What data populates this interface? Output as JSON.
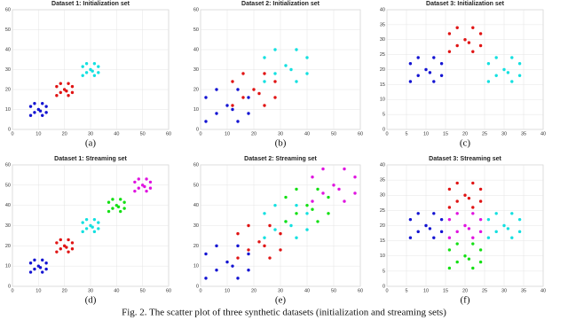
{
  "chart_data": [
    {
      "type": "scatter",
      "title": "Dataset 1: Initialization set",
      "label": "(a)",
      "xlim": [
        0,
        60
      ],
      "ylim": [
        0,
        60
      ],
      "xticks": [
        0,
        10,
        20,
        30,
        40,
        50,
        60
      ],
      "yticks": [
        0,
        10,
        20,
        30,
        40,
        50,
        60
      ],
      "grid": true,
      "series": [
        {
          "color": "#1414d2",
          "x": [
            7,
            11.5,
            10,
            13,
            8.5,
            11.5,
            7,
            13,
            8.5,
            10.75
          ],
          "y": [
            11.5,
            7,
            10,
            11.5,
            8.5,
            13,
            7,
            8.5,
            13,
            9.25
          ]
        },
        {
          "color": "#e01414",
          "x": [
            17,
            21.5,
            20,
            23,
            18.5,
            21.5,
            17,
            23,
            18.5,
            20.75
          ],
          "y": [
            21.5,
            17,
            20,
            21.5,
            18.5,
            23,
            17,
            18.5,
            23,
            19.25
          ]
        },
        {
          "color": "#14e0e0",
          "x": [
            27,
            31.5,
            30,
            33,
            28.5,
            31.5,
            27,
            33,
            28.5,
            30.75
          ],
          "y": [
            31.5,
            27,
            30,
            31.5,
            28.5,
            33,
            27,
            28.5,
            33,
            29.25
          ]
        }
      ]
    },
    {
      "type": "scatter",
      "title": "Dataset 2: Initialization set",
      "label": "(b)",
      "xlim": [
        0,
        60
      ],
      "ylim": [
        0,
        60
      ],
      "xticks": [
        0,
        10,
        20,
        30,
        40,
        50,
        60
      ],
      "yticks": [
        0,
        10,
        20,
        30,
        40,
        50,
        60
      ],
      "grid": true,
      "series": [
        {
          "color": "#1414d2",
          "x": [
            2,
            14,
            10,
            18,
            6,
            14,
            2,
            18,
            6,
            12
          ],
          "y": [
            16,
            4,
            12,
            16,
            8,
            20,
            4,
            8,
            20,
            10
          ]
        },
        {
          "color": "#e01414",
          "x": [
            12,
            24,
            20,
            28,
            16,
            24,
            12,
            28,
            16,
            22
          ],
          "y": [
            24,
            12,
            20,
            24,
            16,
            28,
            12,
            16,
            28,
            18
          ]
        },
        {
          "color": "#14e0e0",
          "x": [
            24,
            36,
            32,
            40,
            28,
            36,
            24,
            40,
            28,
            34
          ],
          "y": [
            36,
            24,
            32,
            36,
            28,
            40,
            24,
            28,
            40,
            30
          ]
        }
      ]
    },
    {
      "type": "scatter",
      "title": "Dataset 3: Initialization set",
      "label": "(c)",
      "xlim": [
        0,
        40
      ],
      "ylim": [
        0,
        40
      ],
      "xticks": [
        0,
        5,
        10,
        15,
        20,
        25,
        30,
        35,
        40
      ],
      "yticks": [
        0,
        5,
        10,
        15,
        20,
        25,
        30,
        35,
        40
      ],
      "grid": true,
      "series": [
        {
          "color": "#1414d2",
          "x": [
            6,
            12,
            10,
            14,
            8,
            12,
            6,
            14,
            8,
            11
          ],
          "y": [
            22,
            16,
            20,
            22,
            18,
            24,
            16,
            18,
            24,
            19
          ]
        },
        {
          "color": "#e01414",
          "x": [
            16,
            22,
            20,
            24,
            18,
            22,
            16,
            24,
            18,
            21
          ],
          "y": [
            32,
            26,
            30,
            32,
            28,
            34,
            26,
            28,
            34,
            29
          ]
        },
        {
          "color": "#14e0e0",
          "x": [
            26,
            32,
            30,
            34,
            28,
            32,
            26,
            34,
            28,
            31
          ],
          "y": [
            22,
            16,
            20,
            22,
            18,
            24,
            16,
            18,
            24,
            19
          ]
        }
      ]
    },
    {
      "type": "scatter",
      "title": "Dataset 1: Streaming set",
      "label": "(d)",
      "xlim": [
        0,
        60
      ],
      "ylim": [
        0,
        60
      ],
      "xticks": [
        0,
        10,
        20,
        30,
        40,
        50,
        60
      ],
      "yticks": [
        0,
        10,
        20,
        30,
        40,
        50,
        60
      ],
      "grid": true,
      "series": [
        {
          "color": "#1414d2",
          "x": [
            7,
            11.5,
            10,
            13,
            8.5,
            11.5,
            7,
            13,
            8.5,
            10.75
          ],
          "y": [
            11.5,
            7,
            10,
            11.5,
            8.5,
            13,
            7,
            8.5,
            13,
            9.25
          ]
        },
        {
          "color": "#e01414",
          "x": [
            17,
            21.5,
            20,
            23,
            18.5,
            21.5,
            17,
            23,
            18.5,
            20.75
          ],
          "y": [
            21.5,
            17,
            20,
            21.5,
            18.5,
            23,
            17,
            18.5,
            23,
            19.25
          ]
        },
        {
          "color": "#14e0e0",
          "x": [
            27,
            31.5,
            30,
            33,
            28.5,
            31.5,
            27,
            33,
            28.5,
            30.75
          ],
          "y": [
            31.5,
            27,
            30,
            31.5,
            28.5,
            33,
            27,
            28.5,
            33,
            29.25
          ]
        },
        {
          "color": "#14e014",
          "x": [
            37,
            41.5,
            40,
            43,
            38.5,
            41.5,
            37,
            43,
            38.5,
            40.75
          ],
          "y": [
            41.5,
            37,
            40,
            41.5,
            38.5,
            43,
            37,
            38.5,
            43,
            39.25
          ]
        },
        {
          "color": "#e014e0",
          "x": [
            47,
            51.5,
            50,
            53,
            48.5,
            51.5,
            47,
            53,
            48.5,
            50.75
          ],
          "y": [
            51.5,
            47,
            50,
            51.5,
            48.5,
            53,
            47,
            48.5,
            53,
            49.25
          ]
        }
      ]
    },
    {
      "type": "scatter",
      "title": "Dataset 2: Streaming set",
      "label": "(e)",
      "xlim": [
        0,
        60
      ],
      "ylim": [
        0,
        60
      ],
      "xticks": [
        0,
        10,
        20,
        30,
        40,
        50,
        60
      ],
      "yticks": [
        0,
        10,
        20,
        30,
        40,
        50,
        60
      ],
      "grid": true,
      "series": [
        {
          "color": "#1414d2",
          "x": [
            2,
            14,
            10,
            18,
            6,
            14,
            2,
            18,
            6,
            12
          ],
          "y": [
            16,
            4,
            12,
            16,
            8,
            20,
            4,
            8,
            20,
            10
          ]
        },
        {
          "color": "#e01414",
          "x": [
            14,
            26,
            22,
            30,
            18,
            26,
            14,
            30,
            18,
            24
          ],
          "y": [
            26,
            14,
            22,
            26,
            18,
            30,
            14,
            18,
            30,
            20
          ]
        },
        {
          "color": "#14e0e0",
          "x": [
            24,
            36,
            32,
            40,
            28,
            36,
            24,
            40,
            28,
            34
          ],
          "y": [
            36,
            24,
            32,
            36,
            28,
            40,
            24,
            28,
            40,
            30
          ]
        },
        {
          "color": "#14e014",
          "x": [
            32,
            44,
            40,
            48,
            36,
            44,
            32,
            48,
            36,
            42
          ],
          "y": [
            44,
            32,
            40,
            44,
            36,
            48,
            32,
            36,
            48,
            38
          ]
        },
        {
          "color": "#e014e0",
          "x": [
            42,
            54,
            50,
            58,
            46,
            54,
            42,
            58,
            46,
            52
          ],
          "y": [
            54,
            42,
            50,
            54,
            46,
            58,
            42,
            46,
            58,
            48
          ]
        }
      ]
    },
    {
      "type": "scatter",
      "title": "Dataset 3: Streaming set",
      "label": "(f)",
      "xlim": [
        0,
        40
      ],
      "ylim": [
        0,
        40
      ],
      "xticks": [
        0,
        5,
        10,
        15,
        20,
        25,
        30,
        35,
        40
      ],
      "yticks": [
        0,
        5,
        10,
        15,
        20,
        25,
        30,
        35,
        40
      ],
      "grid": true,
      "series": [
        {
          "color": "#1414d2",
          "x": [
            6,
            12,
            10,
            14,
            8,
            12,
            6,
            14,
            8,
            11
          ],
          "y": [
            22,
            16,
            20,
            22,
            18,
            24,
            16,
            18,
            24,
            19
          ]
        },
        {
          "color": "#e01414",
          "x": [
            16,
            22,
            20,
            24,
            18,
            22,
            16,
            24,
            18,
            21
          ],
          "y": [
            32,
            26,
            30,
            32,
            28,
            34,
            26,
            28,
            34,
            29
          ]
        },
        {
          "color": "#14e0e0",
          "x": [
            26,
            32,
            30,
            34,
            28,
            32,
            26,
            34,
            28,
            31
          ],
          "y": [
            22,
            16,
            20,
            22,
            18,
            24,
            16,
            18,
            24,
            19
          ]
        },
        {
          "color": "#e014e0",
          "x": [
            16,
            22,
            20,
            24,
            18,
            22,
            16,
            24,
            18,
            21
          ],
          "y": [
            22,
            16,
            20,
            22,
            18,
            24,
            16,
            18,
            24,
            19
          ]
        },
        {
          "color": "#14e014",
          "x": [
            16,
            22,
            20,
            24,
            18,
            22,
            16,
            24,
            18,
            21
          ],
          "y": [
            12,
            6,
            10,
            12,
            8,
            14,
            6,
            8,
            14,
            9
          ]
        }
      ]
    }
  ],
  "caption": "Fig. 2. The scatter plot of three synthetic datasets (initialization and streaming sets)"
}
